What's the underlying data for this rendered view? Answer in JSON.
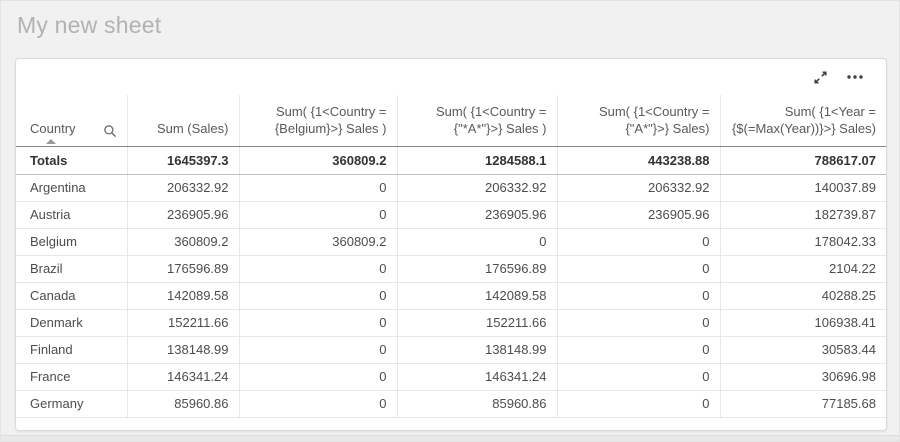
{
  "page": {
    "title": "My new sheet"
  },
  "toolbar": {
    "expand_icon": "expand-to-fullscreen",
    "more_icon": "more-options-menu"
  },
  "colors": {
    "page_bg": "#f1f1f1",
    "card_bg": "#ffffff",
    "title_text": "#b2b2b2",
    "header_text": "#595959",
    "body_text": "#4d4d4d",
    "totals_text": "#333333",
    "grid_border": "#e7e7e7",
    "icon_color": "#404040"
  },
  "table": {
    "columns": [
      {
        "label": "Country",
        "align": "left",
        "has_search": true,
        "sorted_ascending": true
      },
      {
        "label": "Sum (Sales)",
        "align": "right"
      },
      {
        "label": "Sum( {1<Country = {Belgium}>} Sales )",
        "align": "right"
      },
      {
        "label": "Sum( {1<Country = {\"*A*\"}>} Sales )",
        "align": "right"
      },
      {
        "label": "Sum( {1<Country = {\"A*\"}>} Sales)",
        "align": "right"
      },
      {
        "label": "Sum( {1<Year = {$(=Max(Year))}>} Sales)",
        "align": "right"
      }
    ],
    "totals": {
      "label": "Totals",
      "values": [
        "1645397.3",
        "360809.2",
        "1284588.1",
        "443238.88",
        "788617.07"
      ]
    },
    "rows": [
      [
        "Argentina",
        "206332.92",
        "0",
        "206332.92",
        "206332.92",
        "140037.89"
      ],
      [
        "Austria",
        "236905.96",
        "0",
        "236905.96",
        "236905.96",
        "182739.87"
      ],
      [
        "Belgium",
        "360809.2",
        "360809.2",
        "0",
        "0",
        "178042.33"
      ],
      [
        "Brazil",
        "176596.89",
        "0",
        "176596.89",
        "0",
        "2104.22"
      ],
      [
        "Canada",
        "142089.58",
        "0",
        "142089.58",
        "0",
        "40288.25"
      ],
      [
        "Denmark",
        "152211.66",
        "0",
        "152211.66",
        "0",
        "106938.41"
      ],
      [
        "Finland",
        "138148.99",
        "0",
        "138148.99",
        "0",
        "30583.44"
      ],
      [
        "France",
        "146341.24",
        "0",
        "146341.24",
        "0",
        "30696.98"
      ],
      [
        "Germany",
        "85960.86",
        "0",
        "85960.86",
        "0",
        "77185.68"
      ]
    ]
  }
}
